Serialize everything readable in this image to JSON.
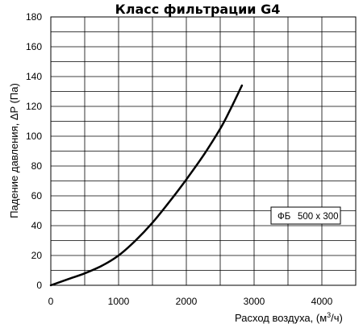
{
  "chart_data": {
    "type": "line",
    "title": "Класс фильтрации G4",
    "xlabel": "Расход воздуха, (м",
    "xlabel_sup": "3",
    "xlabel_tail": "/ч)",
    "ylabel": "Падение давления, ΔP (Па)",
    "xlim": [
      0,
      4500
    ],
    "ylim": [
      0,
      180
    ],
    "x_ticks": [
      "0",
      "1000",
      "2000",
      "3000",
      "4000"
    ],
    "y_ticks": [
      "0",
      "20",
      "40",
      "60",
      "80",
      "100",
      "120",
      "140",
      "160",
      "180"
    ],
    "grid": true,
    "series": [
      {
        "x": [
          0,
          250,
          500,
          750,
          1000,
          1250,
          1500,
          1750,
          2000,
          2250,
          2500,
          2650,
          2820
        ],
        "values": [
          0,
          4,
          8,
          13,
          20,
          30,
          42,
          56,
          71,
          87,
          105,
          118,
          134
        ],
        "color": "#000000"
      }
    ],
    "annotation": {
      "label": "ФБ",
      "text": "500 x 300",
      "position": "right-middle"
    }
  }
}
